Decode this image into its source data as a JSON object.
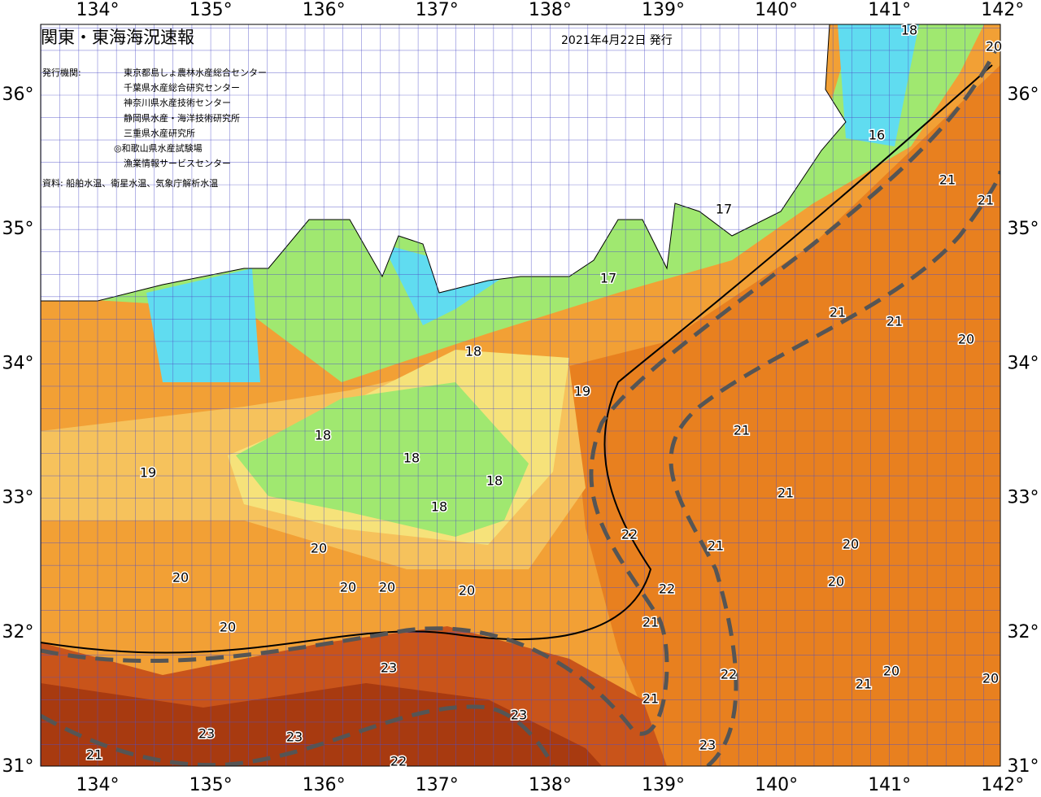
{
  "header": {
    "title": "関東・東海海況速報",
    "date": "2021年4月22日 発行"
  },
  "agencies": {
    "label": "発行機関:",
    "items": [
      "東京都島しょ農林水産総合センター",
      "千葉県水産総合研究センター",
      "神奈川県水産技術センター",
      "静岡県水産・海洋技術研究所",
      "三重県水産研究所",
      "◎和歌山県水産試験場",
      "漁業情報サービスセンター"
    ]
  },
  "source": "資料: 船舶水温、衛星水温、気象庁解析水温",
  "lon_labels": [
    "134°",
    "135°",
    "136°",
    "137°",
    "138°",
    "139°",
    "140°",
    "141°",
    "142°"
  ],
  "lat_labels": [
    "36°",
    "35°",
    "34°",
    "33°",
    "32°",
    "31°"
  ],
  "isotherm_labels": [
    "18",
    "20",
    "16",
    "21",
    "21",
    "17",
    "17",
    "21",
    "21",
    "20",
    "18",
    "19",
    "21",
    "18",
    "18",
    "19",
    "18",
    "21",
    "18",
    "22",
    "21",
    "20",
    "20",
    "20",
    "20",
    "20",
    "20",
    "20",
    "22",
    "21",
    "20",
    "23",
    "20",
    "22",
    "20",
    "21",
    "21",
    "23",
    "23",
    "23",
    "23",
    "21",
    "22"
  ]
}
